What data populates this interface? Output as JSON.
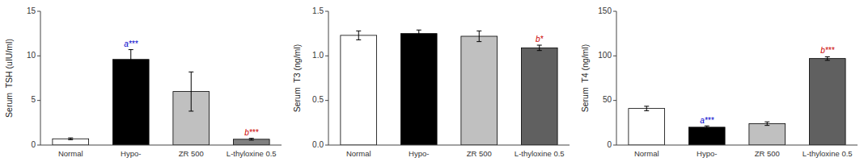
{
  "chart_data": [
    {
      "type": "bar",
      "y_label": "Serum  TSH (uIU/ml)",
      "categories": [
        "Normal",
        "Hypo-",
        "ZR 500",
        "L-thyloxine 0.5"
      ],
      "values": [
        0.7,
        9.6,
        6.0,
        0.65
      ],
      "errors": [
        0.1,
        1.1,
        2.2,
        0.1
      ],
      "colors": [
        "white",
        "black",
        "#c0c0c0",
        "#808080"
      ],
      "ylim": [
        0,
        15
      ],
      "yticks": [
        0,
        5,
        10,
        15
      ],
      "annotations": [
        {
          "text": "a***",
          "category": "Hypo-",
          "y": 10.8,
          "color": "#0000cc"
        },
        {
          "text": "b***",
          "category": "L-thyloxine 0.5",
          "y": 0.9,
          "color": "#cc0000"
        }
      ]
    },
    {
      "type": "bar",
      "y_label": "Serum  T3 (ng/ml)",
      "categories": [
        "Normal",
        "Hypo-",
        "ZR 500",
        "L-thyloxine 0.5"
      ],
      "values": [
        1.23,
        1.25,
        1.22,
        1.09
      ],
      "errors": [
        0.05,
        0.04,
        0.06,
        0.03
      ],
      "colors": [
        "white",
        "black",
        "#c0c0c0",
        "#606060"
      ],
      "ylim": [
        0.0,
        1.5
      ],
      "yticks": [
        {
          "value": 0.0,
          "label": "0.0"
        },
        0.5,
        {
          "value": 1.0,
          "label": "1.0"
        },
        1.5
      ],
      "annotations": [
        {
          "text": "b*",
          "category": "L-thyloxine 0.5",
          "y": 1.14,
          "color": "#cc0000"
        }
      ]
    },
    {
      "type": "bar",
      "y_label": "Serum  T4 (ng/ml)",
      "categories": [
        "Normal",
        "Hypo-",
        "ZR 500",
        "L-thyloxine 0.5"
      ],
      "values": [
        41,
        20,
        24,
        97
      ],
      "errors": [
        2.5,
        1.5,
        2.0,
        2.0
      ],
      "colors": [
        "white",
        "black",
        "#c0c0c0",
        "#606060"
      ],
      "ylim": [
        0,
        150
      ],
      "yticks": [
        0,
        50,
        100,
        150
      ],
      "annotations": [
        {
          "text": "a***",
          "category": "Hypo-",
          "y": 23,
          "color": "#0000cc"
        },
        {
          "text": "b***",
          "category": "L-thyloxine 0.5",
          "y": 101,
          "color": "#cc0000"
        }
      ]
    }
  ]
}
